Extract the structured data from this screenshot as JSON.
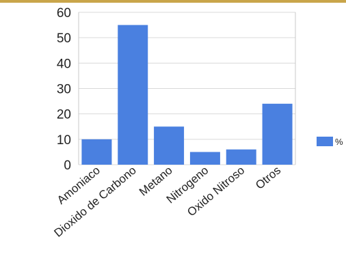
{
  "chart_data": {
    "type": "bar",
    "categories": [
      "Amoniaco",
      "Dioxido de Carbono",
      "Metano",
      "Nitrogeno",
      "Oxido Nitroso",
      "Otros"
    ],
    "series": [
      {
        "name": "%",
        "values": [
          10,
          55,
          15,
          5,
          6,
          24
        ]
      }
    ],
    "yticks": [
      "0",
      "10",
      "20",
      "30",
      "40",
      "50",
      "60"
    ],
    "ylim": [
      0,
      60
    ],
    "grid": true,
    "legend_position": "right",
    "colors": {
      "bar": "#4a80e0",
      "grid": "#d9d9d9",
      "frame": "#c8c8c8",
      "top_rule": "#c9a54a"
    }
  }
}
